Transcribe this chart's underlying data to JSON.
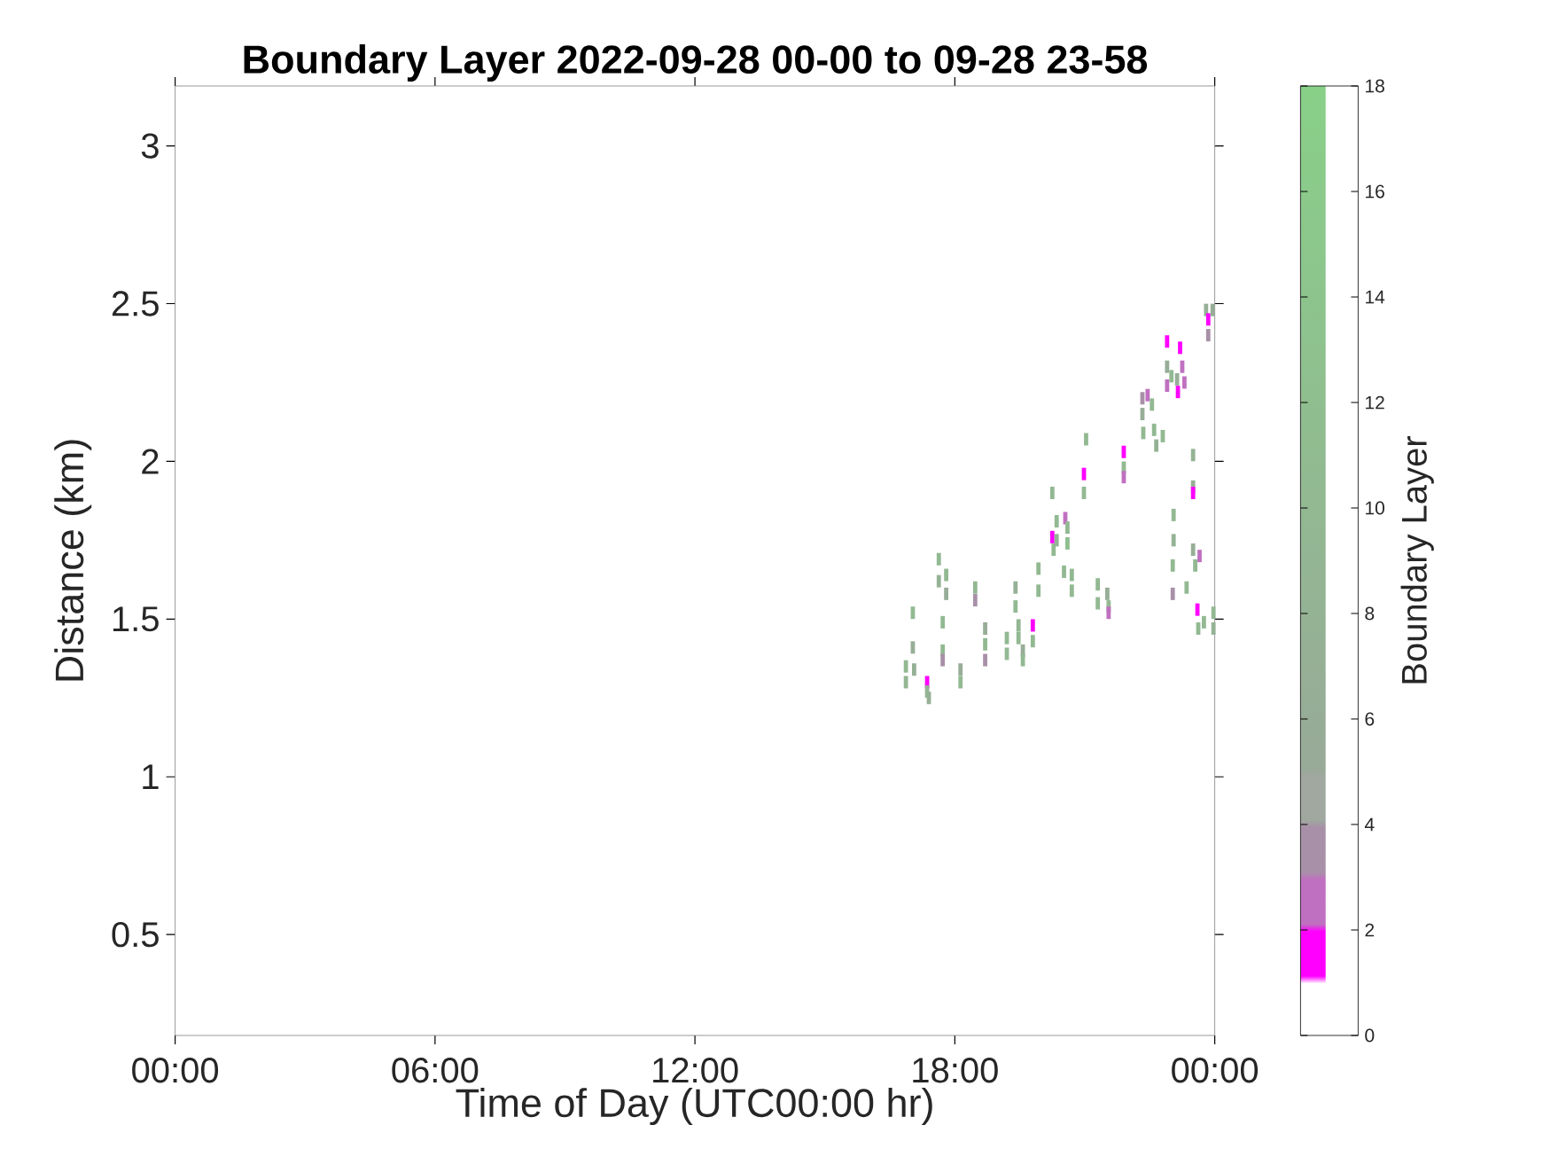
{
  "chart_data": {
    "type": "scatter",
    "title": "Boundary Layer 2022-09-28 00-00 to 09-28 23-58",
    "xlabel": "Time of Day (UTC00:00 hr)",
    "ylabel": "Distance (km)",
    "clabel": "Boundary Layer",
    "marker": "square",
    "x": [
      16.87,
      16.87,
      17.03,
      17.03,
      17.06,
      17.36,
      17.36,
      17.4,
      17.63,
      17.63,
      17.72,
      17.72,
      17.72,
      17.8,
      17.8,
      18.13,
      18.13,
      18.47,
      18.47,
      18.7,
      18.7,
      18.7,
      19.2,
      19.2,
      19.4,
      19.4,
      19.47,
      19.47,
      19.57,
      19.57,
      19.8,
      19.8,
      19.93,
      19.93,
      20.25,
      20.25,
      20.28,
      20.35,
      20.35,
      20.55,
      20.6,
      20.6,
      20.52,
      20.7,
      20.7,
      21.03,
      20.98,
      20.98,
      21.3,
      21.3,
      21.52,
      21.55,
      21.55,
      21.9,
      21.9,
      21.9,
      22.33,
      22.33,
      22.35,
      22.45,
      22.55,
      22.6,
      22.8,
      22.65,
      22.9,
      22.9,
      22.9,
      23.0,
      23.05,
      23.05,
      23.03,
      23.03,
      23.2,
      23.25,
      23.13,
      23.15,
      23.3,
      23.5,
      23.5,
      23.5,
      23.5,
      23.55,
      23.65,
      23.35,
      23.6,
      23.62,
      23.75,
      23.8,
      23.85,
      23.85,
      23.95,
      23.97,
      23.97
    ],
    "values": [
      1.35,
      1.3,
      1.52,
      1.41,
      1.34,
      1.3,
      1.27,
      1.25,
      1.69,
      1.62,
      1.49,
      1.4,
      1.37,
      1.64,
      1.58,
      1.34,
      1.3,
      1.6,
      1.56,
      1.47,
      1.42,
      1.37,
      1.44,
      1.39,
      1.6,
      1.54,
      1.48,
      1.44,
      1.4,
      1.37,
      1.48,
      1.43,
      1.66,
      1.59,
      1.9,
      1.76,
      1.72,
      1.81,
      1.75,
      1.82,
      1.79,
      1.74,
      1.65,
      1.64,
      1.59,
      2.07,
      1.96,
      1.9,
      1.61,
      1.55,
      1.58,
      1.54,
      1.52,
      2.03,
      1.98,
      1.95,
      2.2,
      2.15,
      2.09,
      2.21,
      2.18,
      2.1,
      2.08,
      2.05,
      2.38,
      2.3,
      2.24,
      2.27,
      1.83,
      1.75,
      1.67,
      1.58,
      2.36,
      2.3,
      2.26,
      2.22,
      2.25,
      2.02,
      1.92,
      1.9,
      1.72,
      1.67,
      1.7,
      1.6,
      1.53,
      1.47,
      1.49,
      2.48,
      2.45,
      2.4,
      2.48,
      1.52,
      1.47
    ],
    "cvalues": [
      10,
      9,
      10,
      6,
      7,
      1.5,
      9,
      7,
      10,
      8,
      10,
      10,
      3.5,
      10,
      6,
      6,
      10,
      9,
      3.5,
      6,
      10,
      3.5,
      10,
      10,
      7,
      10,
      9,
      10,
      6,
      10,
      1.5,
      10,
      10,
      10,
      10,
      1.5,
      10,
      10,
      8,
      2.5,
      10,
      12,
      10,
      10,
      10,
      10,
      1.5,
      10,
      10,
      10,
      6,
      10,
      2.5,
      1.5,
      10,
      2.5,
      3.5,
      6,
      10,
      2.5,
      10,
      10,
      10,
      8,
      1.5,
      6,
      2.5,
      10,
      10,
      8,
      10,
      3.5,
      1.5,
      2.5,
      6,
      1.5,
      2.5,
      8,
      6,
      1.5,
      6,
      10,
      2.5,
      10,
      1.5,
      10,
      10,
      7,
      1.5,
      3.5,
      6,
      10,
      8
    ],
    "xlim": [
      0,
      24
    ],
    "xticks": [
      {
        "value": 0,
        "label": "00:00"
      },
      {
        "value": 6,
        "label": "06:00"
      },
      {
        "value": 12,
        "label": "12:00"
      },
      {
        "value": 18,
        "label": "18:00"
      },
      {
        "value": 24,
        "label": "00:00"
      }
    ],
    "ylim": [
      0.18,
      3.19
    ],
    "yticks": [
      0.5,
      1,
      1.5,
      2,
      2.5,
      3
    ],
    "clim": [
      0,
      18
    ],
    "cticks": [
      0,
      2,
      4,
      6,
      8,
      10,
      12,
      14,
      16,
      18
    ]
  }
}
